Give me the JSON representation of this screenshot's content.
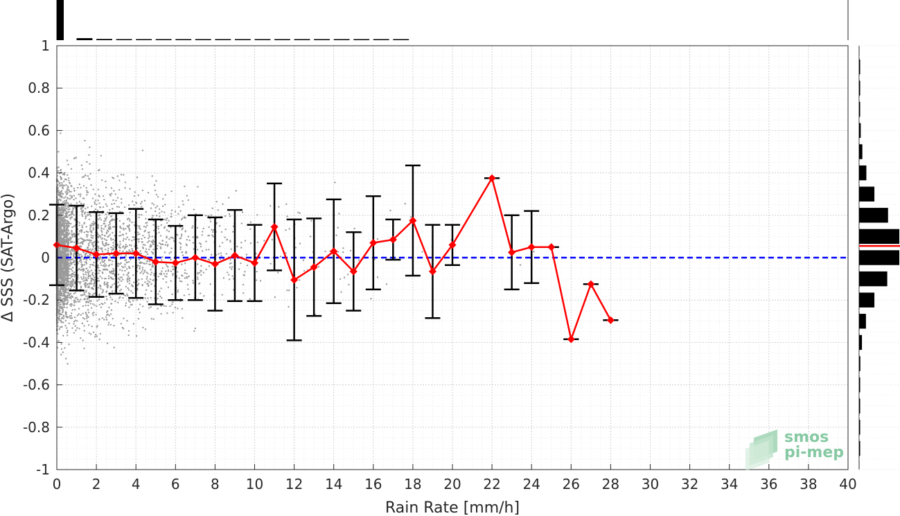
{
  "chart_data": {
    "type": "scatter",
    "xlabel": "Rain Rate [mm/h]",
    "ylabel": "Δ SSS (SAT-Argo)",
    "xlim": [
      0,
      40
    ],
    "ylim": [
      -1,
      1
    ],
    "x_ticks": [
      0,
      2,
      4,
      6,
      8,
      10,
      12,
      14,
      16,
      18,
      20,
      22,
      24,
      26,
      28,
      30,
      32,
      34,
      36,
      38,
      40
    ],
    "y_ticks": [
      -1,
      -0.8,
      -0.6,
      -0.4,
      -0.2,
      0,
      0.2,
      0.4,
      0.6,
      0.8,
      1
    ],
    "grid": true,
    "reference_line": {
      "y": 0,
      "style": "dashed",
      "color": "#0000ff"
    },
    "series": [
      {
        "kind": "binned_mean_with_std",
        "color": "#ff0000",
        "x": [
          0,
          1,
          2,
          3,
          4,
          5,
          6,
          7,
          8,
          9,
          10,
          11,
          12,
          13,
          14,
          15,
          16,
          17,
          18,
          19,
          20,
          22,
          23,
          24,
          25,
          26,
          27,
          28
        ],
        "mean": [
          0.06,
          0.045,
          0.015,
          0.02,
          0.02,
          -0.02,
          -0.025,
          0.0,
          -0.03,
          0.01,
          -0.025,
          0.145,
          -0.105,
          -0.045,
          0.03,
          -0.065,
          0.07,
          0.085,
          0.175,
          -0.065,
          0.06,
          0.375,
          0.025,
          0.05,
          0.05,
          -0.385,
          -0.125,
          -0.295
        ],
        "std": [
          0.19,
          0.2,
          0.2,
          0.19,
          0.21,
          0.2,
          0.175,
          0.2,
          0.22,
          0.215,
          0.18,
          0.205,
          0.285,
          0.23,
          0.245,
          0.185,
          0.22,
          0.095,
          0.26,
          0.22,
          0.095,
          0.0,
          0.175,
          0.17,
          0.0,
          0.0,
          0.0,
          0.0
        ]
      },
      {
        "kind": "scatter_cloud",
        "color": "#999999",
        "note_x_range": [
          0,
          26
        ],
        "description_points": "dense gray points concentrated near rain rate 0 with spread decreasing as rain rate increases"
      }
    ],
    "top_histogram": {
      "bins_x": [
        0,
        1,
        2,
        3,
        4,
        5,
        6,
        7,
        8,
        9,
        10,
        11,
        12,
        13,
        14,
        15,
        16,
        17
      ],
      "relative_height": [
        1.0,
        0.05,
        0.03,
        0.02,
        0.02,
        0.015,
        0.01,
        0.01,
        0.01,
        0.01,
        0.01,
        0.008,
        0.008,
        0.006,
        0.006,
        0.005,
        0.005,
        0.004
      ]
    },
    "right_histogram": {
      "bins_y": [
        -0.9,
        -0.8,
        -0.7,
        -0.6,
        -0.5,
        -0.4,
        -0.3,
        -0.2,
        -0.1,
        0.0,
        0.1,
        0.2,
        0.3,
        0.4,
        0.5,
        0.6,
        0.7,
        0.8,
        0.9
      ],
      "relative_width": [
        0.01,
        0.01,
        0.015,
        0.02,
        0.03,
        0.07,
        0.17,
        0.38,
        0.7,
        1.0,
        1.0,
        0.72,
        0.38,
        0.18,
        0.08,
        0.04,
        0.02,
        0.01,
        0.01
      ],
      "mean_line": {
        "y": 0.055,
        "color": "#ff0000"
      }
    },
    "watermark": {
      "line1": "smos",
      "line2": "pi-mep"
    }
  }
}
